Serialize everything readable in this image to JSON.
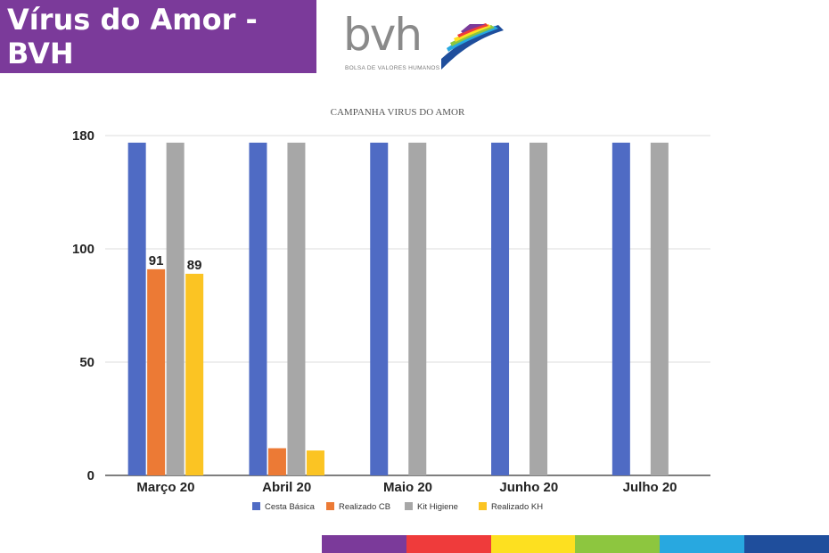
{
  "header": {
    "title": "Vírus do Amor - BVH",
    "banner_color": "#7b3a9a"
  },
  "logo": {
    "word": "bvh",
    "subtitle": "BOLSA DE VALORES HUMANOS"
  },
  "chart_data": {
    "type": "bar",
    "title": "CAMPANHA VIRUS DO AMOR",
    "categories": [
      "Março 20",
      "Abril 20",
      "Maio 20",
      "Junho 20",
      "Julho 20"
    ],
    "y_ticks": [
      0,
      50,
      100,
      180
    ],
    "series": [
      {
        "name": "Cesta Básica",
        "color": "#4f6bc4",
        "values": [
          175,
          175,
          175,
          175,
          175
        ]
      },
      {
        "name": "Realizado CB",
        "color": "#ec7a35",
        "values": [
          91,
          12,
          null,
          null,
          null
        ],
        "data_labels": [
          "91",
          null,
          null,
          null,
          null
        ]
      },
      {
        "name": "Kit Higiene",
        "color": "#a7a7a7",
        "values": [
          175,
          175,
          175,
          175,
          175
        ]
      },
      {
        "name": "Realizado KH",
        "color": "#fbc423",
        "values": [
          89,
          11,
          null,
          null,
          null
        ],
        "data_labels": [
          "89",
          null,
          null,
          null,
          null
        ]
      }
    ],
    "legend_position": "bottom",
    "grid": true
  },
  "footer": {
    "stripe_colors": [
      "#7b3a9a",
      "#ef3b3b",
      "#fde020",
      "#8dc63f",
      "#28a8e0",
      "#1f4e9c"
    ]
  }
}
